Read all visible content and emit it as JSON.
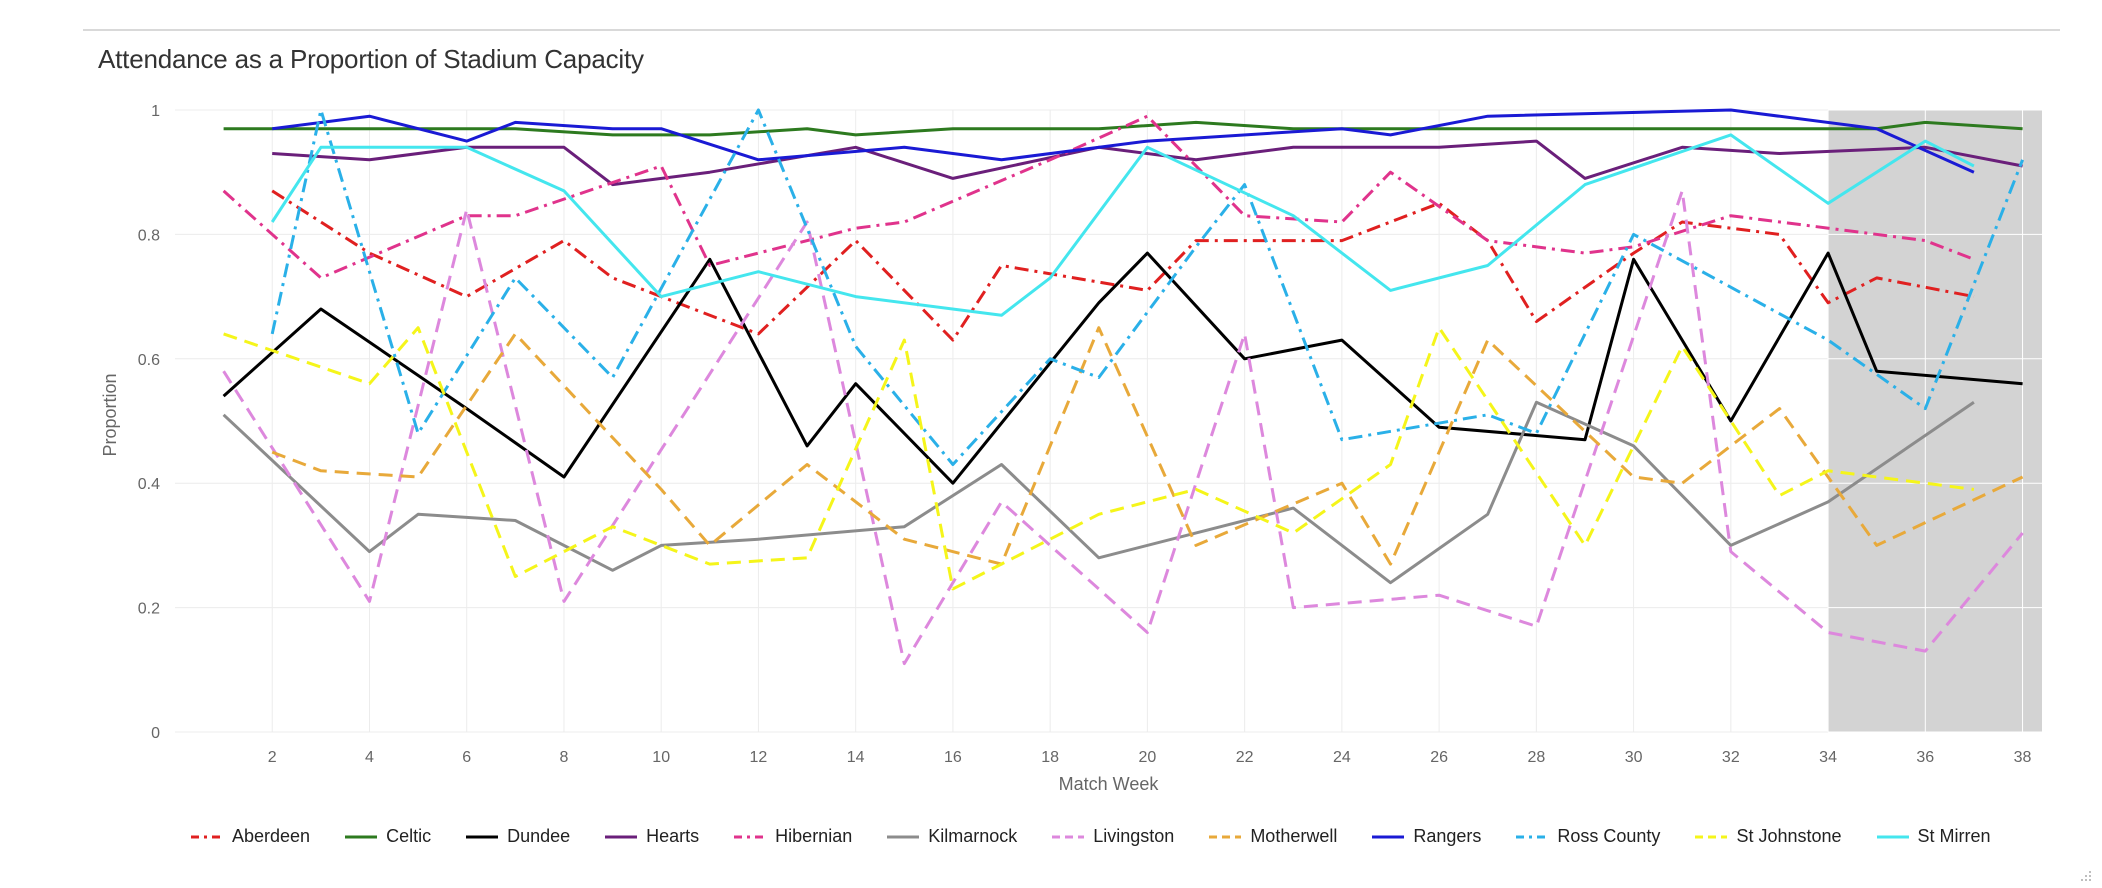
{
  "chart_data": {
    "type": "line",
    "title": "Attendance as a Proportion of Stadium Capacity",
    "xlabel": "Match Week",
    "ylabel": "Proportion",
    "xlim": [
      0,
      38.4
    ],
    "ylim": [
      0,
      1
    ],
    "xticks": [
      2,
      4,
      6,
      8,
      10,
      12,
      14,
      16,
      18,
      20,
      22,
      24,
      26,
      28,
      30,
      32,
      34,
      36,
      38
    ],
    "yticks": [
      0,
      0.2,
      0.4,
      0.6,
      0.8,
      1
    ],
    "ytick_labels": [
      "0",
      "0.2",
      "0.4",
      "0.6",
      "0.8",
      "1"
    ],
    "shaded_region": [
      34,
      38.4
    ],
    "grid": true,
    "legend_position": "bottom",
    "series": [
      {
        "name": "Aberdeen",
        "color": "#e02020",
        "dash": "dashdot",
        "points": [
          [
            2,
            0.87
          ],
          [
            4,
            0.77
          ],
          [
            6,
            0.7
          ],
          [
            8,
            0.79
          ],
          [
            9,
            0.73
          ],
          [
            10,
            0.7
          ],
          [
            12,
            0.64
          ],
          [
            14,
            0.79
          ],
          [
            16,
            0.63
          ],
          [
            17,
            0.75
          ],
          [
            20,
            0.71
          ],
          [
            21,
            0.79
          ],
          [
            24,
            0.79
          ],
          [
            26,
            0.85
          ],
          [
            27,
            0.79
          ],
          [
            28,
            0.66
          ],
          [
            30,
            0.77
          ],
          [
            31,
            0.82
          ],
          [
            33,
            0.8
          ],
          [
            34,
            0.69
          ],
          [
            35,
            0.73
          ],
          [
            37,
            0.7
          ]
        ]
      },
      {
        "name": "Celtic",
        "color": "#2d7a1f",
        "dash": "solid",
        "points": [
          [
            1,
            0.97
          ],
          [
            3,
            0.97
          ],
          [
            5,
            0.97
          ],
          [
            7,
            0.97
          ],
          [
            9,
            0.96
          ],
          [
            11,
            0.96
          ],
          [
            13,
            0.97
          ],
          [
            14,
            0.96
          ],
          [
            16,
            0.97
          ],
          [
            19,
            0.97
          ],
          [
            21,
            0.98
          ],
          [
            23,
            0.97
          ],
          [
            25,
            0.97
          ],
          [
            27,
            0.97
          ],
          [
            29,
            0.97
          ],
          [
            31,
            0.97
          ],
          [
            33,
            0.97
          ],
          [
            35,
            0.97
          ],
          [
            36,
            0.98
          ],
          [
            38,
            0.97
          ]
        ]
      },
      {
        "name": "Dundee",
        "color": "#000000",
        "dash": "solid",
        "points": [
          [
            1,
            0.54
          ],
          [
            3,
            0.68
          ],
          [
            6,
            0.52
          ],
          [
            8,
            0.41
          ],
          [
            11,
            0.76
          ],
          [
            13,
            0.46
          ],
          [
            14,
            0.56
          ],
          [
            16,
            0.4
          ],
          [
            19,
            0.69
          ],
          [
            20,
            0.77
          ],
          [
            22,
            0.6
          ],
          [
            24,
            0.63
          ],
          [
            26,
            0.49
          ],
          [
            29,
            0.47
          ],
          [
            30,
            0.76
          ],
          [
            32,
            0.5
          ],
          [
            34,
            0.77
          ],
          [
            35,
            0.58
          ],
          [
            38,
            0.56
          ]
        ]
      },
      {
        "name": "Hearts",
        "color": "#6a1f7a",
        "dash": "solid",
        "points": [
          [
            2,
            0.93
          ],
          [
            4,
            0.92
          ],
          [
            6,
            0.94
          ],
          [
            8,
            0.94
          ],
          [
            9,
            0.88
          ],
          [
            11,
            0.9
          ],
          [
            14,
            0.94
          ],
          [
            16,
            0.89
          ],
          [
            19,
            0.94
          ],
          [
            21,
            0.92
          ],
          [
            23,
            0.94
          ],
          [
            26,
            0.94
          ],
          [
            28,
            0.95
          ],
          [
            29,
            0.89
          ],
          [
            31,
            0.94
          ],
          [
            33,
            0.93
          ],
          [
            36,
            0.94
          ],
          [
            38,
            0.91
          ]
        ]
      },
      {
        "name": "Hibernian",
        "color": "#e0338c",
        "dash": "dashdot",
        "points": [
          [
            1,
            0.87
          ],
          [
            3,
            0.73
          ],
          [
            6,
            0.83
          ],
          [
            7,
            0.83
          ],
          [
            10,
            0.91
          ],
          [
            11,
            0.75
          ],
          [
            14,
            0.81
          ],
          [
            15,
            0.82
          ],
          [
            18,
            0.92
          ],
          [
            20,
            0.99
          ],
          [
            22,
            0.83
          ],
          [
            24,
            0.82
          ],
          [
            25,
            0.9
          ],
          [
            27,
            0.79
          ],
          [
            29,
            0.77
          ],
          [
            30,
            0.78
          ],
          [
            32,
            0.83
          ],
          [
            36,
            0.79
          ],
          [
            37,
            0.76
          ]
        ]
      },
      {
        "name": "Kilmarnock",
        "color": "#8c8c8c",
        "dash": "solid",
        "points": [
          [
            1,
            0.51
          ],
          [
            4,
            0.29
          ],
          [
            5,
            0.35
          ],
          [
            7,
            0.34
          ],
          [
            9,
            0.26
          ],
          [
            10,
            0.3
          ],
          [
            12,
            0.31
          ],
          [
            15,
            0.33
          ],
          [
            17,
            0.43
          ],
          [
            19,
            0.28
          ],
          [
            23,
            0.36
          ],
          [
            25,
            0.24
          ],
          [
            27,
            0.35
          ],
          [
            28,
            0.53
          ],
          [
            30,
            0.46
          ],
          [
            32,
            0.3
          ],
          [
            34,
            0.37
          ],
          [
            37,
            0.53
          ]
        ]
      },
      {
        "name": "Livingston",
        "color": "#dd88dd",
        "dash": "dashed",
        "points": [
          [
            1,
            0.58
          ],
          [
            4,
            0.21
          ],
          [
            6,
            0.84
          ],
          [
            8,
            0.21
          ],
          [
            13,
            0.82
          ],
          [
            15,
            0.11
          ],
          [
            17,
            0.37
          ],
          [
            20,
            0.16
          ],
          [
            22,
            0.64
          ],
          [
            23,
            0.2
          ],
          [
            26,
            0.22
          ],
          [
            28,
            0.17
          ],
          [
            31,
            0.87
          ],
          [
            32,
            0.29
          ],
          [
            34,
            0.16
          ],
          [
            36,
            0.13
          ],
          [
            38,
            0.32
          ]
        ]
      },
      {
        "name": "Motherwell",
        "color": "#e8a93a",
        "dash": "dashed",
        "points": [
          [
            2,
            0.45
          ],
          [
            3,
            0.42
          ],
          [
            5,
            0.41
          ],
          [
            7,
            0.64
          ],
          [
            10,
            0.39
          ],
          [
            11,
            0.3
          ],
          [
            13,
            0.43
          ],
          [
            15,
            0.31
          ],
          [
            17,
            0.27
          ],
          [
            19,
            0.65
          ],
          [
            21,
            0.3
          ],
          [
            24,
            0.4
          ],
          [
            25,
            0.27
          ],
          [
            27,
            0.63
          ],
          [
            30,
            0.41
          ],
          [
            31,
            0.4
          ],
          [
            33,
            0.52
          ],
          [
            34,
            0.41
          ],
          [
            35,
            0.3
          ],
          [
            38,
            0.41
          ]
        ]
      },
      {
        "name": "Rangers",
        "color": "#1a1ad4",
        "dash": "solid",
        "points": [
          [
            2,
            0.97
          ],
          [
            4,
            0.99
          ],
          [
            6,
            0.95
          ],
          [
            7,
            0.98
          ],
          [
            9,
            0.97
          ],
          [
            10,
            0.97
          ],
          [
            12,
            0.92
          ],
          [
            15,
            0.94
          ],
          [
            17,
            0.92
          ],
          [
            20,
            0.95
          ],
          [
            24,
            0.97
          ],
          [
            25,
            0.96
          ],
          [
            27,
            0.99
          ],
          [
            32,
            1.0
          ],
          [
            35,
            0.97
          ],
          [
            37,
            0.9
          ]
        ]
      },
      {
        "name": "Ross County",
        "color": "#2ab0e8",
        "dash": "dashdot",
        "points": [
          [
            2,
            0.64
          ],
          [
            3,
            1.0
          ],
          [
            5,
            0.48
          ],
          [
            7,
            0.73
          ],
          [
            9,
            0.57
          ],
          [
            12,
            1.0
          ],
          [
            14,
            0.62
          ],
          [
            16,
            0.43
          ],
          [
            18,
            0.6
          ],
          [
            19,
            0.57
          ],
          [
            21,
            0.78
          ],
          [
            22,
            0.88
          ],
          [
            24,
            0.47
          ],
          [
            27,
            0.51
          ],
          [
            28,
            0.48
          ],
          [
            30,
            0.8
          ],
          [
            34,
            0.63
          ],
          [
            36,
            0.52
          ],
          [
            38,
            0.92
          ]
        ]
      },
      {
        "name": "St Johnstone",
        "color": "#f5f51a",
        "dash": "dashed",
        "points": [
          [
            1,
            0.64
          ],
          [
            4,
            0.56
          ],
          [
            5,
            0.65
          ],
          [
            7,
            0.25
          ],
          [
            9,
            0.33
          ],
          [
            11,
            0.27
          ],
          [
            13,
            0.28
          ],
          [
            15,
            0.63
          ],
          [
            16,
            0.23
          ],
          [
            19,
            0.35
          ],
          [
            21,
            0.39
          ],
          [
            23,
            0.32
          ],
          [
            25,
            0.43
          ],
          [
            26,
            0.65
          ],
          [
            29,
            0.3
          ],
          [
            31,
            0.62
          ],
          [
            33,
            0.38
          ],
          [
            34,
            0.42
          ],
          [
            37,
            0.39
          ]
        ]
      },
      {
        "name": "St Mirren",
        "color": "#44e6ee",
        "dash": "solid",
        "points": [
          [
            2,
            0.82
          ],
          [
            3,
            0.94
          ],
          [
            6,
            0.94
          ],
          [
            8,
            0.87
          ],
          [
            10,
            0.7
          ],
          [
            12,
            0.74
          ],
          [
            14,
            0.7
          ],
          [
            17,
            0.67
          ],
          [
            18,
            0.73
          ],
          [
            20,
            0.94
          ],
          [
            23,
            0.83
          ],
          [
            25,
            0.71
          ],
          [
            27,
            0.75
          ],
          [
            29,
            0.88
          ],
          [
            32,
            0.96
          ],
          [
            34,
            0.85
          ],
          [
            36,
            0.95
          ],
          [
            37,
            0.91
          ]
        ]
      }
    ]
  }
}
